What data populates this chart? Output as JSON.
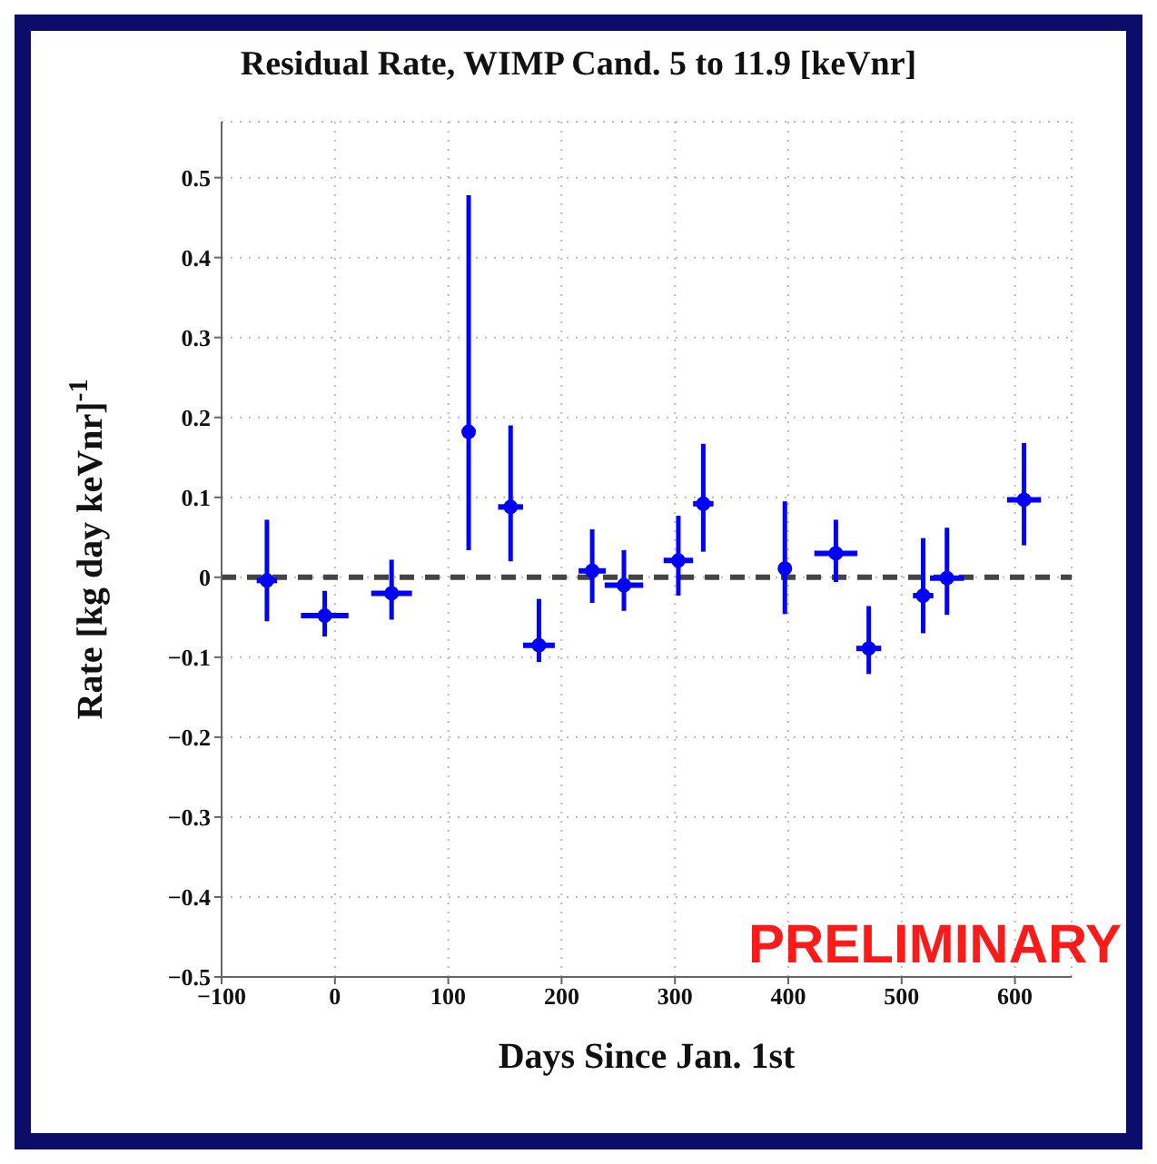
{
  "chart_data": {
    "type": "scatter",
    "title": "Residual Rate, WIMP Cand. 5 to 11.9 [keVnr]",
    "xlabel": "Days Since Jan. 1st",
    "ylabel": "Rate [kg day keVnr]$^{-1}$",
    "x": [
      -60,
      -9,
      50,
      118,
      155,
      180,
      227,
      255,
      303,
      325,
      397,
      442,
      471,
      519,
      540,
      608
    ],
    "series": [
      {
        "color": "#0000ff",
        "values": [
          -0.004,
          -0.048,
          -0.02,
          0.182,
          0.088,
          -0.085,
          0.008,
          -0.01,
          0.021,
          0.092,
          0.011,
          0.03,
          -0.089,
          -0.023,
          -0.001,
          0.097
        ],
        "errors": [
          [
            -0.055,
            0.072
          ],
          [
            -0.074,
            -0.017
          ],
          [
            -0.053,
            0.022
          ],
          [
            0.034,
            0.478
          ],
          [
            0.02,
            0.19
          ],
          [
            -0.106,
            -0.027
          ],
          [
            -0.032,
            0.06
          ],
          [
            -0.042,
            0.034
          ],
          [
            -0.023,
            0.077
          ],
          [
            0.032,
            0.167
          ],
          [
            -0.046,
            0.095
          ],
          [
            -0.006,
            0.072
          ],
          [
            -0.121,
            -0.036
          ],
          [
            -0.07,
            0.049
          ],
          [
            -0.047,
            0.062
          ],
          [
            0.04,
            0.168
          ]
        ],
        "xerrors": [
          9,
          21,
          18,
          null,
          11,
          14,
          12,
          17,
          13,
          9,
          5,
          19,
          11,
          9,
          15,
          15
        ]
      }
    ],
    "xlim": [
      -100,
      650
    ],
    "xticks": [
      -100,
      0,
      100,
      200,
      300,
      400,
      500,
      600
    ],
    "ylim": [
      -0.5,
      0.57
    ],
    "yticks": [
      -0.5,
      -0.4,
      -0.3,
      -0.2,
      -0.1,
      0,
      0.1,
      0.2,
      0.3,
      0.4,
      0.5
    ],
    "grid": true,
    "marker": "circle",
    "ref_lines": [
      {
        "axis": "y",
        "value": 0,
        "color": "#444444",
        "line_style": "dashed"
      }
    ],
    "annotations": [
      "PRELIMINARY"
    ]
  }
}
